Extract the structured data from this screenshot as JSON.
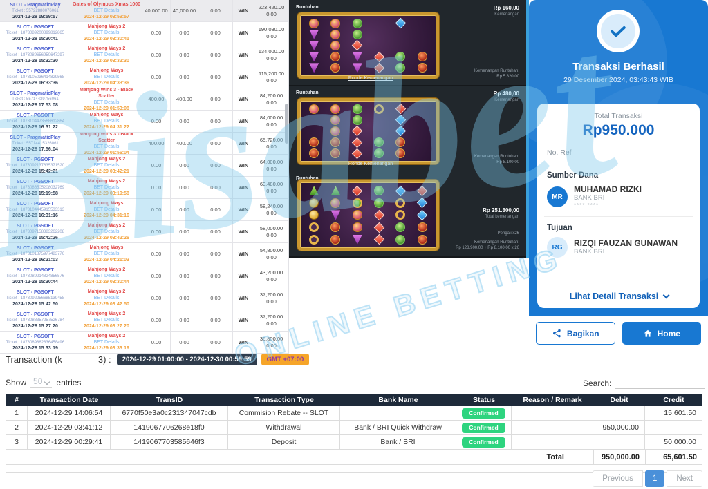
{
  "watermark": {
    "script": "Bisabet",
    "caption": "ONLINE BETTING"
  },
  "bet_table": {
    "rows": [
      {
        "provider": "SLOT - PragmaticPlay",
        "ticket": "Ticket : 55722880076061",
        "placed": "2024-12-28 19:59:57",
        "game": "Gates of Olympus Xmas 1000",
        "details": "BET Details",
        "settled": "2024-12-29 03:59:57",
        "bet": "40,000.00",
        "valid": "40,000.00",
        "other": "0.00",
        "status": "WIN",
        "win": "223,420.00",
        "win2": "0.00"
      },
      {
        "provider": "SLOT - PGSOFT",
        "ticket": "Ticket : 1873089200899812865",
        "placed": "2024-12-28 15:30:41",
        "game": "Mahjong Ways 2",
        "details": "BET Details",
        "settled": "2024-12-29 03:30:41",
        "bet": "0.00",
        "valid": "0.00",
        "other": "0.00",
        "status": "WIN",
        "win": "190,080.00",
        "win2": "0.00"
      },
      {
        "provider": "SLOT - PGSOFT",
        "ticket": "Ticket : 1873089656950647297",
        "placed": "2024-12-28 15:32:30",
        "game": "Mahjong Ways 2",
        "details": "BET Details",
        "settled": "2024-12-29 03:32:30",
        "bet": "0.00",
        "valid": "0.00",
        "other": "0.00",
        "status": "WIN",
        "win": "134,000.00",
        "win2": "0.00"
      },
      {
        "provider": "SLOT - PGSOFT",
        "ticket": "Ticket : 1873105036414829568",
        "placed": "2024-12-28 16:33:36",
        "game": "Mahjong Ways",
        "details": "BET Details",
        "settled": "2024-12-29 04:33:36",
        "bet": "0.00",
        "valid": "0.00",
        "other": "0.00",
        "status": "WIN",
        "win": "115,200.00",
        "win2": "0.00"
      },
      {
        "provider": "SLOT - PragmaticPlay",
        "ticket": "Ticket : 55714439756061",
        "placed": "2024-12-28 17:53:08",
        "game": "Mahjong Wins 3 - Black Scatter",
        "details": "BET Details",
        "settled": "2024-12-29 01:53:08",
        "bet": "400.00",
        "valid": "400.00",
        "other": "0.00",
        "status": "WIN",
        "win": "84,200.00",
        "win2": "0.00"
      },
      {
        "provider": "SLOT - PGSOFT",
        "ticket": "Ticket : 1873104473568612864",
        "placed": "2024-12-28 16:31:22",
        "game": "Mahjong Ways",
        "details": "BET Details",
        "settled": "2024-12-29 04:31:22",
        "bet": "0.00",
        "valid": "0.00",
        "other": "0.00",
        "status": "WIN",
        "win": "84,000.00",
        "win2": "0.00"
      },
      {
        "provider": "SLOT - PragmaticPlay",
        "ticket": "Ticket : 55714415326061",
        "placed": "2024-12-28 17:56:04",
        "game": "Mahjong Wins 3 - Black Scatter",
        "details": "BET Details",
        "settled": "2024-12-29 01:56:04",
        "bet": "400.00",
        "valid": "400.00",
        "other": "0.00",
        "status": "WIN",
        "win": "65,720.00",
        "win2": "0.00"
      },
      {
        "provider": "SLOT - PGSOFT",
        "ticket": "Ticket : 1873092137635371520",
        "placed": "2024-12-28 15:42:21",
        "game": "Mahjong Ways 2",
        "details": "BET Details",
        "settled": "2024-12-29 03:42:21",
        "bet": "0.00",
        "valid": "0.00",
        "other": "0.00",
        "status": "WIN",
        "win": "64,000.00",
        "win2": "0.00"
      },
      {
        "provider": "SLOT - PGSOFT",
        "ticket": "Ticket : 1873086505208032769",
        "placed": "2024-12-28 15:19:58",
        "game": "Mahjong Ways 2",
        "details": "BET Details",
        "settled": "2024-12-29 03:19:58",
        "bet": "0.00",
        "valid": "0.00",
        "other": "0.00",
        "status": "WIN",
        "win": "60,480.00",
        "win2": "0.00"
      },
      {
        "provider": "SLOT - PGSOFT",
        "ticket": "Ticket : 1873104445915533313",
        "placed": "2024-12-28 16:31:16",
        "game": "Mahjong Ways",
        "details": "BET Details",
        "settled": "2024-12-29 04:31:16",
        "bet": "0.00",
        "valid": "0.00",
        "other": "0.00",
        "status": "WIN",
        "win": "58,240.00",
        "win2": "0.00"
      },
      {
        "provider": "SLOT - PGSOFT",
        "ticket": "Ticket : 1873097158383262208",
        "placed": "2024-12-28 15:42:26",
        "game": "Mahjong Ways 2",
        "details": "BET Details",
        "settled": "2024-12-29 03:42:26",
        "bet": "0.00",
        "valid": "0.00",
        "other": "0.00",
        "status": "WIN",
        "win": "58,000.00",
        "win2": "0.00"
      },
      {
        "provider": "SLOT - PGSOFT",
        "ticket": "Ticket : 1873101875977483776",
        "placed": "2024-12-28 16:21:03",
        "game": "Mahjong Ways",
        "details": "BET Details",
        "settled": "2024-12-29 04:21:03",
        "bet": "0.00",
        "valid": "0.00",
        "other": "0.00",
        "status": "WIN",
        "win": "54,800.00",
        "win2": "0.00"
      },
      {
        "provider": "SLOT - PGSOFT",
        "ticket": "Ticket : 1873089214824856576",
        "placed": "2024-12-28 15:30:44",
        "game": "Mahjong Ways 2",
        "details": "BET Details",
        "settled": "2024-12-29 03:30:44",
        "bet": "0.00",
        "valid": "0.00",
        "other": "0.00",
        "status": "WIN",
        "win": "43,200.00",
        "win2": "0.00"
      },
      {
        "provider": "SLOT - PGSOFT",
        "ticket": "Ticket : 1873092256685139458",
        "placed": "2024-12-28 15:42:50",
        "game": "Mahjong Ways 2",
        "details": "BET Details",
        "settled": "2024-12-29 03:42:50",
        "bet": "0.00",
        "valid": "0.00",
        "other": "0.00",
        "status": "WIN",
        "win": "37,200.00",
        "win2": "0.00"
      },
      {
        "provider": "SLOT - PGSOFT",
        "ticket": "Ticket : 1873088357257526784",
        "placed": "2024-12-28 15:27:20",
        "game": "Mahjong Ways 2",
        "details": "BET Details",
        "settled": "2024-12-29 03:27:20",
        "bet": "0.00",
        "valid": "0.00",
        "other": "0.00",
        "status": "WIN",
        "win": "37,200.00",
        "win2": "0.00"
      },
      {
        "provider": "SLOT - PGSOFT",
        "ticket": "Ticket : 1873089862836458496",
        "placed": "2024-12-28 15:33:19",
        "game": "Mahjong Ways 2",
        "details": "BET Details",
        "settled": "2024-12-29 03:33:19",
        "bet": "0.00",
        "valid": "0.00",
        "other": "0.00",
        "status": "WIN",
        "win": "36,800.00",
        "win2": "0.00"
      }
    ]
  },
  "game_panels": [
    {
      "label": "Runtuhan",
      "amount": "Rp 160,00",
      "caption": "Kemenangan",
      "link": "Ronde Kemenangan",
      "footer_label": "Kemenangan Runtuhan:",
      "footer_value": "Rp 5.820,00",
      "multiplier": "",
      "board": [
        [
          "co",
          "co",
          "ob",
          "",
          "gb",
          ""
        ],
        [
          "tp",
          "co",
          "ob",
          "",
          "",
          ""
        ],
        [
          "tp",
          "co",
          "gr",
          "",
          "",
          ""
        ],
        [
          "tp",
          "po",
          "tp",
          "gr",
          "ob",
          "po"
        ],
        [
          "tp",
          "po",
          "tp",
          "gr",
          "ob",
          "po"
        ]
      ]
    },
    {
      "label": "Runtuhan",
      "amount": "Rp 480,00",
      "caption": "Kemenangan",
      "link": "Ronde Kemenangan",
      "footer_label": "Kemenangan Runtuhan:",
      "footer_value": "Rp 8.100,00",
      "multiplier": "",
      "board": [
        [
          "co",
          "co",
          "ob",
          "ri",
          "gr",
          ""
        ],
        [
          "",
          "co",
          "ob",
          "",
          "gb",
          ""
        ],
        [
          "",
          "co",
          "gr",
          "",
          "gb",
          ""
        ],
        [
          "po",
          "po",
          "gr",
          "ob",
          "po",
          ""
        ],
        [
          "po",
          "po",
          "gr",
          "ob",
          "po",
          ""
        ]
      ]
    },
    {
      "label": "Runtuhan",
      "amount": "Rp 251.800,00",
      "caption": "Total kemenangan",
      "link": "",
      "footer_label": "Kemenangan Runtuhan:",
      "footer_value": "Rp 128.900,00 + Rp 8.100,00 x 26",
      "multiplier": "Pengali x26",
      "board": [
        [
          "tg",
          "tg",
          "gr",
          "ob",
          "gb",
          "gr"
        ],
        [
          "go",
          "co",
          "wi",
          "ob",
          "ri",
          "gb"
        ],
        [
          "go",
          "tp",
          "co",
          "gr",
          "ri",
          "gb"
        ],
        [
          "ri",
          "po",
          "co",
          "gr",
          "ob",
          "po"
        ],
        [
          "ri",
          "po",
          "tp",
          "gr",
          "ob",
          "po"
        ]
      ]
    }
  ],
  "receipt": {
    "title": "Transaksi Berhasil",
    "datetime": "29 Desember 2024, 03:43:43 WIB",
    "total_label": "Total Transaksi",
    "total_value": "Rp950.000",
    "ref_label": "No. Ref",
    "source_label": "Sumber Dana",
    "source_initials": "MR",
    "source_name": "MUHAMAD RIZKI",
    "source_bank": "BANK BRI",
    "source_mask": "**** ****",
    "dest_label": "Tujuan",
    "dest_initials": "RG",
    "dest_name": "RIZQI FAUZAN GUNAWAN",
    "dest_bank": "BANK BRI",
    "detail_link": "Lihat Detail Transaksi",
    "share_label": "Bagikan",
    "home_label": "Home"
  },
  "filters": {
    "title_prefix": "Transaction (k",
    "title_suffix": "3) :",
    "date_range": "2024-12-29 01:00:00 - 2024-12-30 00:59:59",
    "timezone": "GMT +07:00",
    "show_label": "Show",
    "show_value": "50",
    "entries_label": "entries",
    "search_label": "Search:"
  },
  "tx_table": {
    "headers": [
      "#",
      "Transaction Date",
      "TransID",
      "Transaction Type",
      "Bank Name",
      "Status",
      "Reason / Remark",
      "Debit",
      "Credit"
    ],
    "rows": [
      {
        "no": "1",
        "date": "2024-12-29 14:06:54",
        "transid": "6770f50e3a0c231347047cdb",
        "type": "Commision Rebate -- SLOT",
        "bank": "",
        "status": "Confirmed",
        "remark": "",
        "debit": "",
        "credit": "15,601.50"
      },
      {
        "no": "2",
        "date": "2024-12-29 03:41:12",
        "transid": "1419067706268e18f0",
        "type": "Withdrawal",
        "bank": "Bank / BRI Quick Withdraw",
        "status": "Confirmed",
        "remark": "",
        "debit": "950,000.00",
        "credit": ""
      },
      {
        "no": "3",
        "date": "2024-12-29 00:29:41",
        "transid": "1419067703585646f3",
        "type": "Deposit",
        "bank": "Bank / BRI",
        "status": "Confirmed",
        "remark": "",
        "debit": "",
        "credit": "50,000.00"
      }
    ],
    "total_label": "Total",
    "total_debit": "950,000.00",
    "total_credit": "65,601.50"
  },
  "pagination": {
    "prev": "Previous",
    "page": "1",
    "next": "Next"
  }
}
